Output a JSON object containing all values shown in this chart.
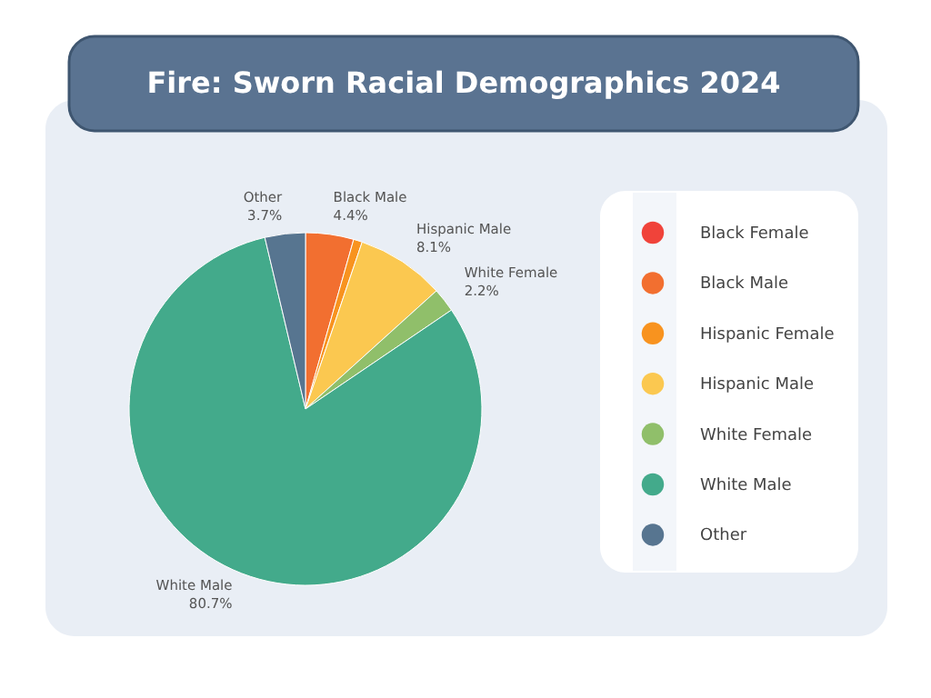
{
  "chart_data": {
    "type": "pie",
    "title": "Fire: Sworn Racial Demographics 2024",
    "categories": [
      "Black Female",
      "Black Male",
      "Hispanic Female",
      "Hispanic Male",
      "White Female",
      "White Male",
      "Other"
    ],
    "values": [
      null,
      4.4,
      0.8,
      8.1,
      2.2,
      80.7,
      3.7
    ],
    "value_labels": [
      null,
      "4.4%",
      null,
      "8.1%",
      "2.2%",
      "80.7%",
      "3.7%"
    ],
    "colors": [
      "#f0433a",
      "#f26f30",
      "#f8931f",
      "#fbc850",
      "#90bf6a",
      "#43aa8b",
      "#577590"
    ],
    "legend": "right"
  }
}
